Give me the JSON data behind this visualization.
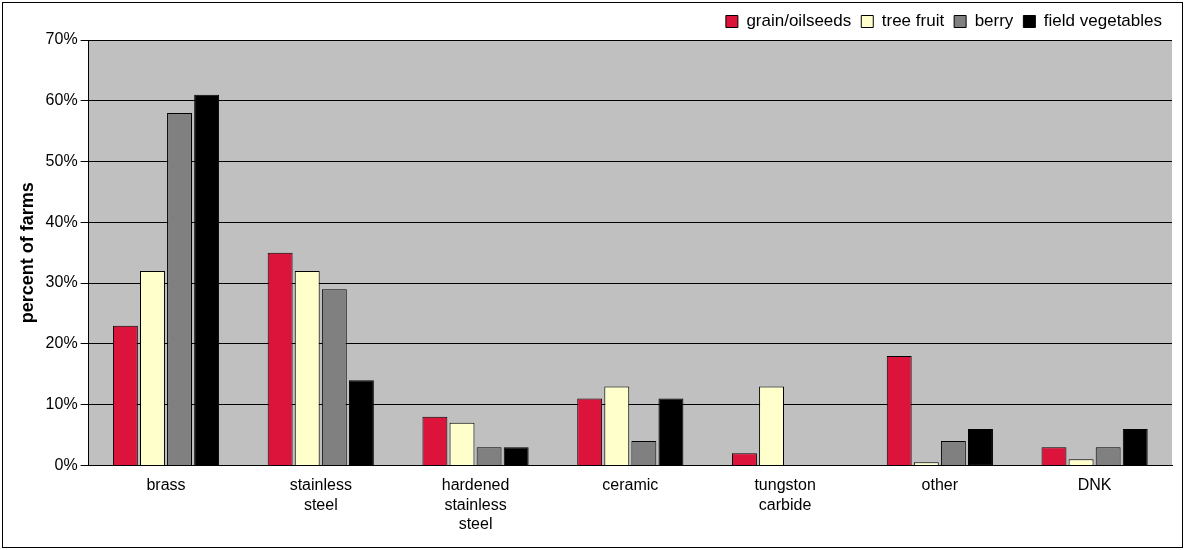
{
  "chart_data": {
    "type": "bar",
    "ylabel": "percent of farms",
    "categories": [
      "brass",
      "stainless steel",
      "hardened stainless steel",
      "ceramic",
      "tungston carbide",
      "other",
      "DNK"
    ],
    "series": [
      {
        "name": "grain/oilseeds",
        "color": "#dc143c",
        "values": [
          23,
          35,
          8,
          11,
          2,
          18,
          3
        ]
      },
      {
        "name": "tree fruit",
        "color": "#ffffcc",
        "values": [
          32,
          32,
          7,
          13,
          13,
          0.5,
          1
        ]
      },
      {
        "name": "berry",
        "color": "#808080",
        "values": [
          58,
          29,
          3,
          4,
          0,
          4,
          3
        ]
      },
      {
        "name": "field vegetables",
        "color": "#000000",
        "values": [
          61,
          14,
          3,
          11,
          0,
          6,
          6
        ]
      }
    ],
    "ylim": [
      0,
      70
    ],
    "yticks": [
      {
        "value": 0,
        "label": "0%"
      },
      {
        "value": 10,
        "label": "10%"
      },
      {
        "value": 20,
        "label": "20%"
      },
      {
        "value": 30,
        "label": "30%"
      },
      {
        "value": 40,
        "label": "40%"
      },
      {
        "value": 50,
        "label": "50%"
      },
      {
        "value": 60,
        "label": "60%"
      },
      {
        "value": 70,
        "label": "70%"
      }
    ],
    "grid": "y",
    "legend": "top right"
  }
}
